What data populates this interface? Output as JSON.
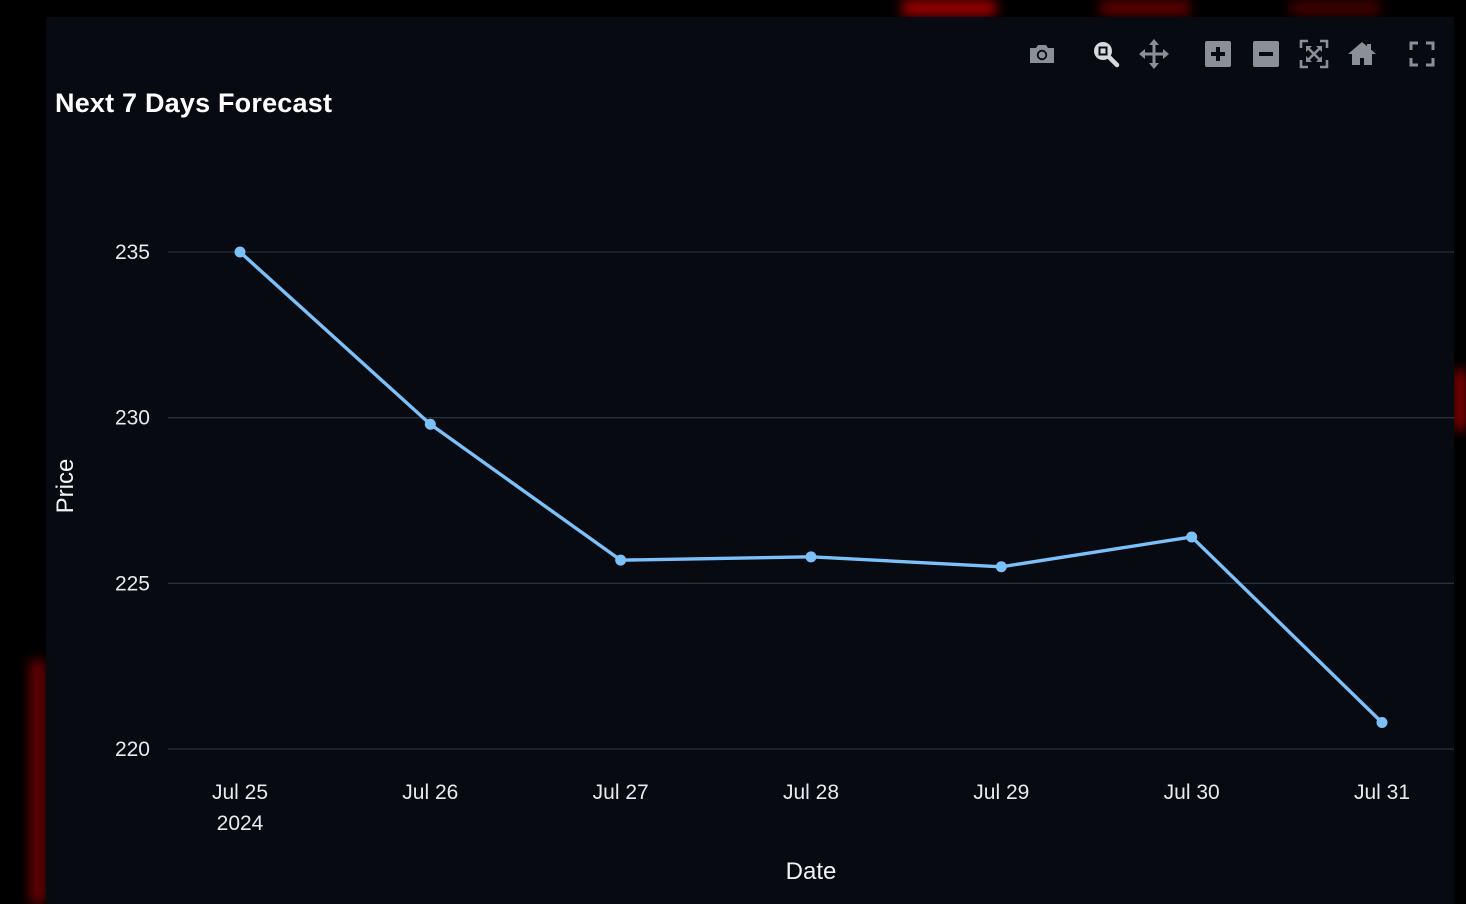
{
  "toolbar": {
    "buttons": [
      {
        "name": "camera-icon",
        "label": "Download plot as a png"
      },
      {
        "name": "zoom-icon",
        "label": "Zoom"
      },
      {
        "name": "pan-icon",
        "label": "Pan"
      },
      {
        "name": "zoom-in-icon",
        "label": "Zoom in"
      },
      {
        "name": "zoom-out-icon",
        "label": "Zoom out"
      },
      {
        "name": "autoscale-icon",
        "label": "Autoscale"
      },
      {
        "name": "home-icon",
        "label": "Reset axes"
      },
      {
        "name": "fullscreen-icon",
        "label": "View fullscreen"
      }
    ],
    "icon_color": "#8a8f98",
    "active_icon_color": "#d7d9dd"
  },
  "chart_data": {
    "type": "line",
    "title": "Next 7 Days Forecast",
    "xlabel": "Date",
    "ylabel": "Price",
    "x": [
      "Jul 25",
      "Jul 26",
      "Jul 27",
      "Jul 28",
      "Jul 29",
      "Jul 30",
      "Jul 31"
    ],
    "x_year_label": "2024",
    "series": [
      {
        "values": [
          235.0,
          229.8,
          225.7,
          225.8,
          225.5,
          226.4,
          220.8
        ],
        "color": "#7cc0f9"
      }
    ],
    "yticks": [
      220,
      225,
      230,
      235
    ],
    "ylim": [
      219.2,
      237.4
    ],
    "grid": true,
    "legend": "none",
    "colors": {
      "background": "#070a10",
      "grid": "#2a2f38",
      "text": "#e8eaed"
    }
  }
}
